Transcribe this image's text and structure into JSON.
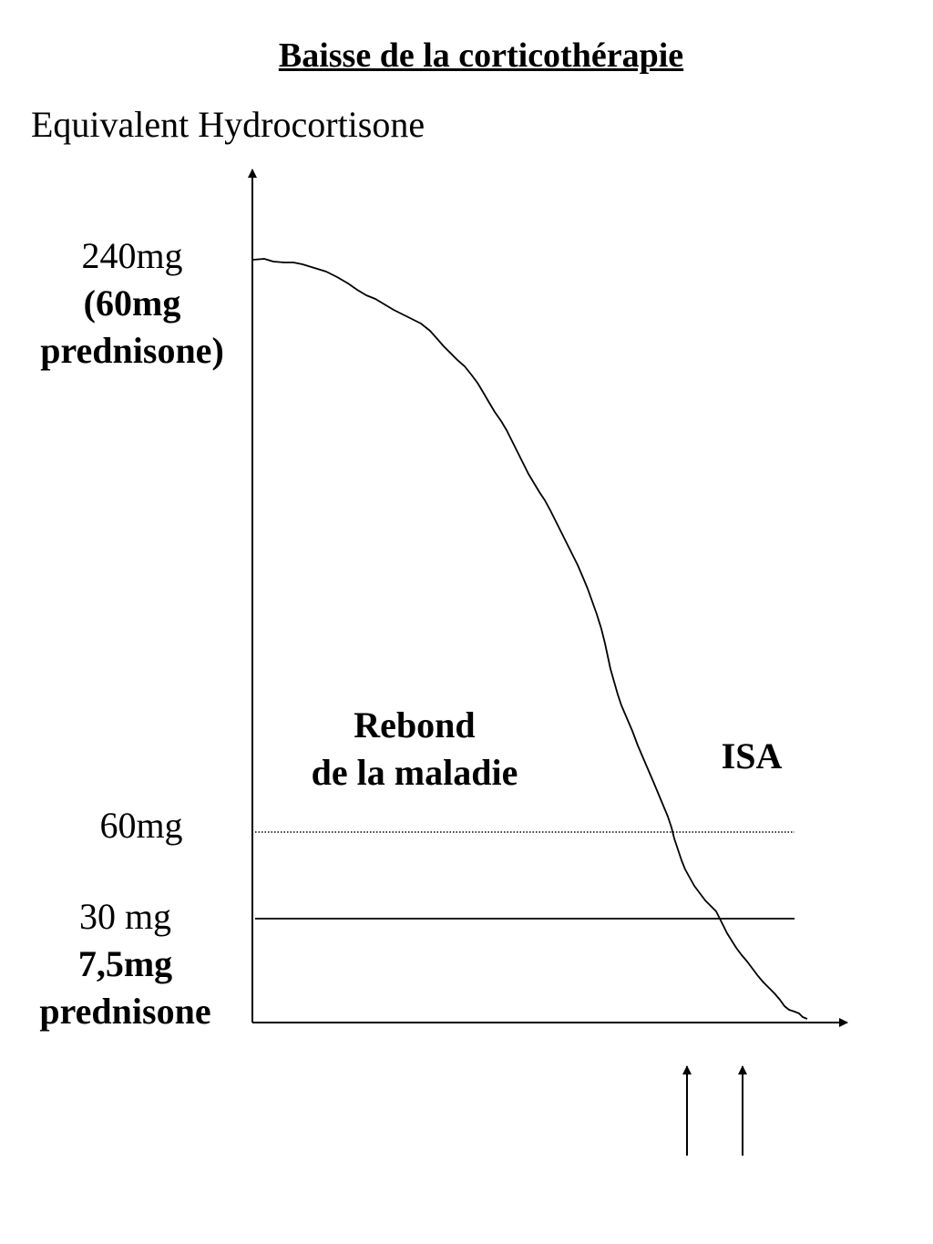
{
  "title": "Baisse de la corticothérapie",
  "y_axis_title": "Equivalent Hydrocortisone",
  "y_labels": {
    "top": {
      "line1": "240mg",
      "line2": "(60mg",
      "line3": "prednisone)"
    },
    "mid": {
      "line1": "60mg"
    },
    "low": {
      "line1": "30 mg",
      "line2": "7,5mg",
      "line3": "prednisone"
    }
  },
  "regions": {
    "rebond": {
      "line1": "Rebond",
      "line2": "de la maladie"
    },
    "isa": "ISA"
  },
  "thresholds": [
    {
      "value_mg": 60,
      "style": "dotted"
    },
    {
      "value_mg": 30,
      "style": "solid"
    }
  ],
  "markers": {
    "count": 2,
    "direction": "up"
  },
  "colors": {
    "ink": "#000000",
    "background": "#ffffff"
  }
}
